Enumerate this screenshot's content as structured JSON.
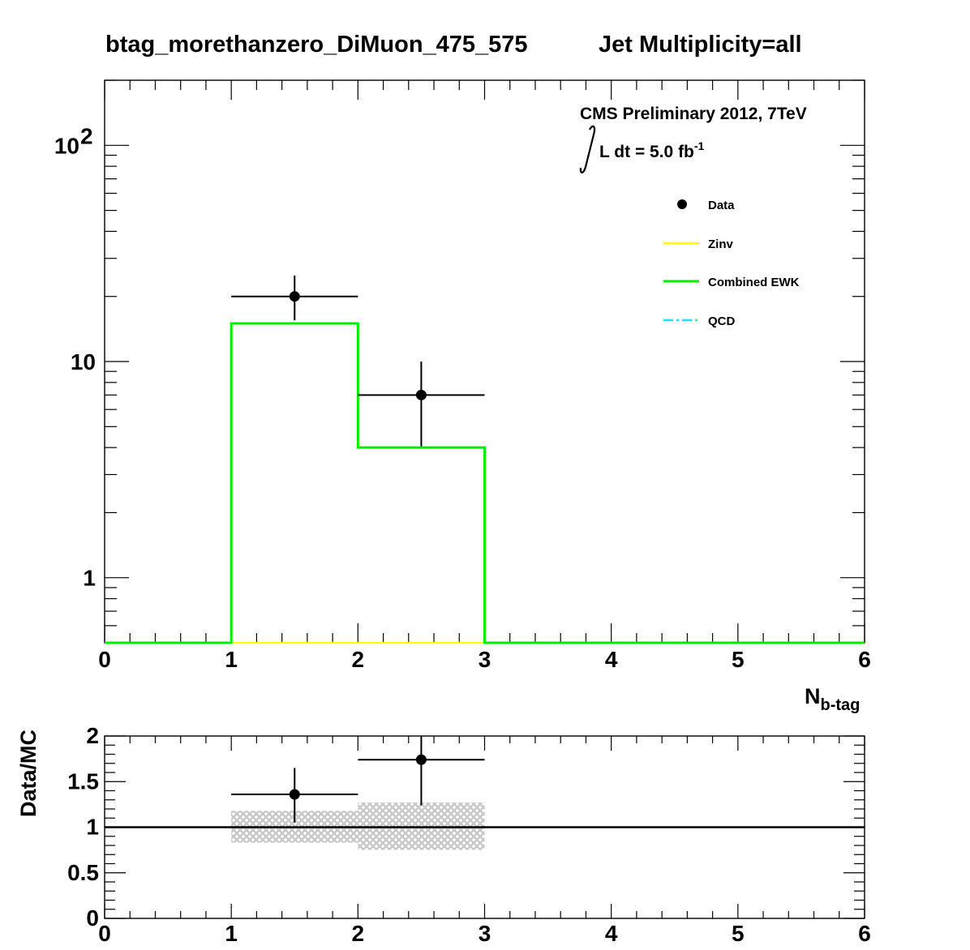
{
  "title": "btag_morethanzero_DiMuon_475_575",
  "subtitle": "Jet Multiplicity=all",
  "cms_label": "CMS Preliminary 2012, 7TeV",
  "lumi": {
    "prefix": "L dt = 5.0 fb",
    "exponent": "-1"
  },
  "colors": {
    "data": "#000000",
    "zinv": "#ffff00",
    "combined_ewk": "#00ee00",
    "qcd": "#22ddff",
    "band": "#c8c8c8"
  },
  "chart_data": [
    {
      "type": "histogram",
      "name": "main",
      "xlim": [
        0,
        6
      ],
      "ylim": [
        0.5,
        200
      ],
      "yscale": "log",
      "x_ticks": [
        "0",
        "1",
        "2",
        "3",
        "4",
        "5",
        "6"
      ],
      "y_ticks": [
        {
          "value": 1,
          "label": "1"
        },
        {
          "value": 10,
          "label": "10"
        },
        {
          "value": 100,
          "label": "10",
          "exponent": "2"
        }
      ],
      "xlabel": {
        "main": "N",
        "sub": "b-tag"
      },
      "ylabel": "",
      "legend": {
        "position": "top-right",
        "entries": [
          {
            "key": "data",
            "label": "Data",
            "style": "marker"
          },
          {
            "key": "zinv",
            "label": "Zinv",
            "style": "line"
          },
          {
            "key": "combined_ewk",
            "label": "Combined EWK",
            "style": "line"
          },
          {
            "key": "qcd",
            "label": "QCD",
            "style": "dash-dot"
          }
        ]
      },
      "series": [
        {
          "key": "combined_ewk",
          "kind": "step",
          "bin_edges": [
            0,
            1,
            2,
            3,
            4,
            5,
            6
          ],
          "values": [
            0,
            15,
            4,
            0,
            0,
            0
          ]
        },
        {
          "key": "zinv",
          "kind": "step",
          "bin_edges": [
            0,
            1,
            2,
            3,
            4,
            5,
            6
          ],
          "values": [
            0,
            0,
            0,
            0,
            0,
            0
          ]
        },
        {
          "key": "data",
          "kind": "points",
          "points": [
            {
              "x": 1.5,
              "xerr": 0.5,
              "y": 20,
              "ylo": 15.5,
              "yhi": 25
            },
            {
              "x": 2.5,
              "xerr": 0.5,
              "y": 7,
              "ylo": 4.05,
              "yhi": 10
            }
          ]
        }
      ],
      "grid": false
    },
    {
      "type": "scatter",
      "name": "ratio",
      "xlim": [
        0,
        6
      ],
      "ylim": [
        0,
        2
      ],
      "x_ticks": [
        "0",
        "1",
        "2",
        "3",
        "4",
        "5",
        "6"
      ],
      "y_ticks": [
        "0",
        "0.5",
        "1",
        "1.5",
        "2"
      ],
      "ylabel": "Data/MC",
      "reference_line": 1,
      "points": [
        {
          "x": 1.5,
          "xerr": 0.5,
          "y": 1.36,
          "ylo": 1.05,
          "yhi": 1.65
        },
        {
          "x": 2.5,
          "xerr": 0.5,
          "y": 1.74,
          "ylo": 1.24,
          "yhi": 2.0
        }
      ],
      "uncertainty_band": [
        {
          "x0": 1,
          "x1": 2,
          "ylo": 0.83,
          "yhi": 1.18
        },
        {
          "x0": 2,
          "x1": 3,
          "ylo": 0.75,
          "yhi": 1.27
        }
      ],
      "grid": false
    }
  ]
}
